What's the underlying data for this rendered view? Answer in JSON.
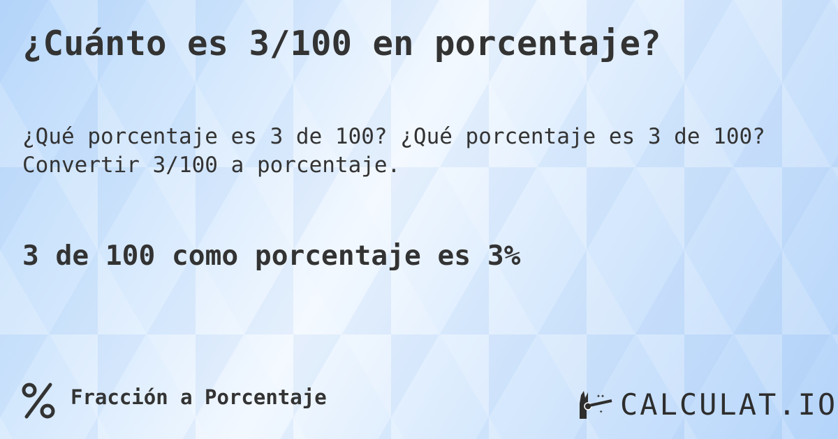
{
  "title": "¿Cuánto es 3/100 en porcentaje?",
  "question_line1": "¿Qué porcentaje es 3 de 100? ¿Qué porcentaje es 3 de 100?",
  "question_line2": "Convertir 3/100 a porcentaje.",
  "answer": "3 de 100 como porcentaje es 3%",
  "footer": {
    "category": "Fracción a Porcentaje",
    "icon": "percent-icon"
  },
  "logo": {
    "text": "CALCULAT.IO",
    "icon": "magic-hand-icon"
  }
}
